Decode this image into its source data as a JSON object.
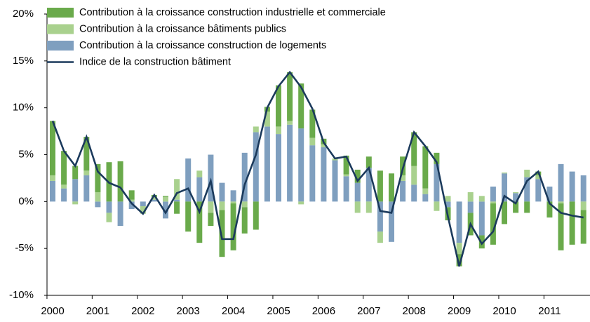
{
  "chart_data": {
    "type": "bar-line",
    "categories": [
      "2000",
      null,
      null,
      null,
      "2001",
      null,
      null,
      null,
      "2002",
      null,
      null,
      null,
      "2003",
      null,
      null,
      null,
      "2004",
      null,
      null,
      null,
      "2005",
      null,
      null,
      null,
      "2006",
      null,
      null,
      null,
      "2007",
      null,
      null,
      null,
      "2008",
      null,
      null,
      null,
      "2009",
      null,
      null,
      null,
      "2010",
      null,
      null,
      null,
      "2011",
      null,
      null,
      null
    ],
    "series": [
      {
        "name": "Contribution à la croissance construction industrielle et commerciale",
        "color": "#6aaa4b",
        "kind": "bar",
        "values": [
          5.8,
          3.6,
          1.4,
          3.6,
          3.0,
          4.2,
          4.3,
          1.0,
          0.0,
          0.2,
          0.1,
          -1.3,
          -3.2,
          -4.4,
          -1.4,
          -5.0,
          -5.0,
          -2.8,
          -3.0,
          0.5,
          4.4,
          5.2,
          4.8,
          3.0,
          0.6,
          0.0,
          2.0,
          1.4,
          1.2,
          3.3,
          3.0,
          2.0,
          3.6,
          4.5,
          1.2,
          -1.4,
          -1.3,
          -2.4,
          -1.4,
          -4.4,
          -2.4,
          -1.2,
          -1.2,
          0.4,
          -1.7,
          -5.0,
          -4.6,
          -3.6
        ]
      },
      {
        "name": "Contribution à la croissance bâtiments publics",
        "color": "#a9d18e",
        "kind": "bar",
        "values": [
          0.6,
          0.4,
          -0.3,
          0.5,
          1.0,
          -1.0,
          0.0,
          0.2,
          -0.8,
          0.3,
          0.5,
          2.2,
          0.0,
          0.7,
          -1.2,
          -0.9,
          -0.2,
          -0.6,
          0.6,
          1.6,
          0.8,
          0.4,
          -0.3,
          0.8,
          0.3,
          0.2,
          0.2,
          -1.2,
          -1.2,
          -1.2,
          0.0,
          0.6,
          2.0,
          0.6,
          -1.0,
          0.6,
          -1.2,
          1.0,
          0.6,
          -0.2,
          0.1,
          0.1,
          0.8,
          0.4,
          0.0,
          -0.2,
          0.0,
          -0.9
        ]
      },
      {
        "name": "Contribution à la croissance construction de logements",
        "color": "#7f9fbf",
        "kind": "bar",
        "values": [
          2.2,
          1.4,
          2.4,
          2.8,
          -0.6,
          -1.2,
          -2.6,
          -0.8,
          -0.5,
          0.2,
          -1.8,
          0.2,
          4.6,
          2.6,
          5.0,
          2.0,
          1.2,
          5.2,
          7.4,
          8.0,
          7.2,
          8.2,
          7.8,
          6.0,
          5.8,
          4.4,
          2.7,
          2.0,
          3.6,
          -3.2,
          -4.3,
          2.2,
          1.8,
          0.8,
          4.0,
          -0.6,
          -4.4,
          -1.2,
          -3.6,
          1.6,
          3.0,
          0.9,
          2.6,
          2.4,
          1.6,
          4.0,
          3.2,
          2.8
        ]
      },
      {
        "name": "Indice de la construction bâtiment",
        "color": "#1b3a5c",
        "kind": "line",
        "values": [
          8.6,
          5.4,
          3.8,
          6.9,
          3.2,
          2.0,
          1.5,
          -0.2,
          -1.3,
          0.7,
          -1.2,
          0.9,
          1.4,
          -1.1,
          2.2,
          -4.0,
          -4.0,
          1.8,
          5.0,
          10.0,
          12.3,
          13.8,
          12.2,
          9.9,
          6.3,
          4.6,
          4.8,
          2.2,
          3.6,
          -1.0,
          -1.2,
          3.5,
          7.4,
          5.9,
          4.2,
          -1.6,
          -6.9,
          -2.4,
          -4.5,
          -3.2,
          0.6,
          -0.2,
          2.2,
          3.2,
          -0.2,
          -1.2,
          -1.5,
          -1.7
        ]
      }
    ],
    "ylim": [
      -10,
      20
    ],
    "yticks": [
      {
        "value": -10,
        "label": "-10%"
      },
      {
        "value": -5,
        "label": "-5%"
      },
      {
        "value": 0,
        "label": "0%"
      },
      {
        "value": 5,
        "label": "5%"
      },
      {
        "value": 10,
        "label": "10%"
      },
      {
        "value": 15,
        "label": "15%"
      },
      {
        "value": 20,
        "label": "20%"
      }
    ],
    "grid": false
  }
}
